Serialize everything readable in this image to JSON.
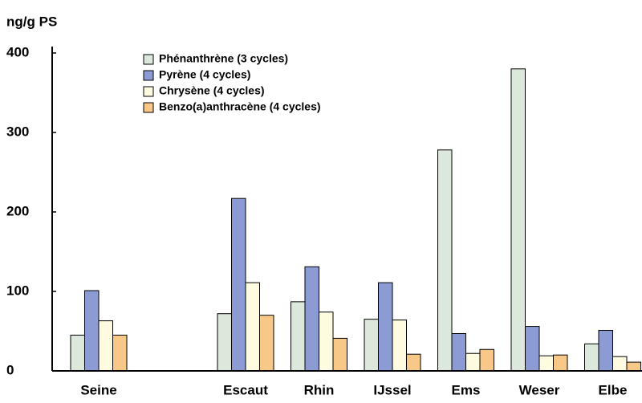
{
  "chart_data": {
    "type": "bar",
    "y_label": "ng/g PS",
    "categories": [
      "Seine",
      null,
      "Escaut",
      "Rhin",
      "IJssel",
      "Ems",
      "Weser",
      "Elbe"
    ],
    "series": [
      {
        "name": "Phénanthrène (3 cycles)",
        "color": "#dde8dc",
        "values": [
          45,
          null,
          72,
          87,
          65,
          278,
          380,
          34
        ]
      },
      {
        "name": "Pyrène (4 cycles)",
        "color": "#8c9bd4",
        "values": [
          101,
          null,
          217,
          131,
          111,
          47,
          56,
          51
        ]
      },
      {
        "name": "Chrysène (4 cycles)",
        "color": "#fffbe0",
        "values": [
          63,
          null,
          111,
          74,
          64,
          22,
          19,
          18
        ]
      },
      {
        "name": "Benzo(a)anthracène (4 cycles)",
        "color": "#f8c889",
        "values": [
          45,
          null,
          70,
          41,
          21,
          27,
          20,
          11
        ]
      }
    ],
    "ylim": [
      0,
      400
    ],
    "yticks": [
      0,
      100,
      200,
      300,
      400
    ]
  }
}
